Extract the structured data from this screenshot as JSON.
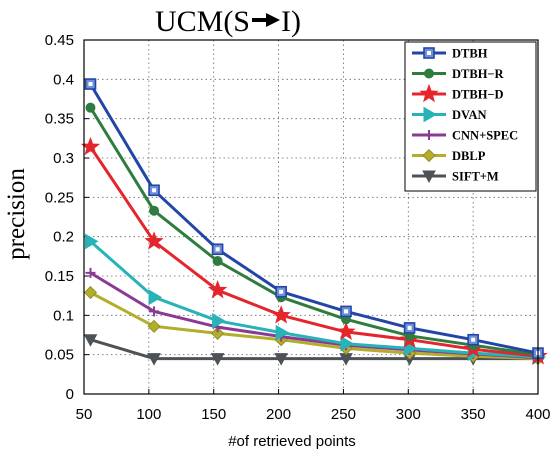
{
  "chart_data": {
    "type": "line",
    "title_left": "UCM(S",
    "title_right": "I)",
    "title_arrow_icon": "right-arrow-icon",
    "xlabel": "#of retrieved points",
    "ylabel": "precision",
    "xlim": [
      50,
      400
    ],
    "ylim": [
      0,
      0.45
    ],
    "xticks": [
      50,
      100,
      150,
      200,
      250,
      300,
      350,
      400
    ],
    "yticks": [
      "0",
      "0.05",
      "0.1",
      "0.15",
      "0.2",
      "0.25",
      "0.3",
      "0.35",
      "0.4",
      "0.45"
    ],
    "grid": true,
    "legend_position": "top-right",
    "x": [
      55,
      104,
      153,
      202,
      252,
      301,
      350,
      400
    ],
    "series": [
      {
        "name": "DTBH",
        "color": "#2346a6",
        "marker": "square-open",
        "values": [
          0.394,
          0.259,
          0.184,
          0.13,
          0.105,
          0.084,
          0.069,
          0.052
        ]
      },
      {
        "name": "DTBH−R",
        "color": "#2e7d3e",
        "marker": "circle",
        "values": [
          0.364,
          0.233,
          0.169,
          0.123,
          0.095,
          0.074,
          0.062,
          0.05
        ]
      },
      {
        "name": "DTBH−D",
        "color": "#e4262c",
        "marker": "star",
        "values": [
          0.314,
          0.194,
          0.132,
          0.1,
          0.079,
          0.069,
          0.057,
          0.048
        ]
      },
      {
        "name": "DVAN",
        "color": "#27b3b8",
        "marker": "triangle-right",
        "values": [
          0.194,
          0.123,
          0.093,
          0.078,
          0.064,
          0.058,
          0.052,
          0.047
        ]
      },
      {
        "name": "CNN+SPEC",
        "color": "#8a3a94",
        "marker": "plus",
        "values": [
          0.154,
          0.105,
          0.085,
          0.073,
          0.062,
          0.056,
          0.051,
          0.046
        ]
      },
      {
        "name": "DBLP",
        "color": "#b3ad2c",
        "marker": "diamond",
        "values": [
          0.129,
          0.086,
          0.077,
          0.069,
          0.058,
          0.052,
          0.048,
          0.045
        ]
      },
      {
        "name": "SIFT+M",
        "color": "#4d5257",
        "marker": "triangle-down",
        "values": [
          0.069,
          0.045,
          0.045,
          0.045,
          0.045,
          0.045,
          0.045,
          0.045
        ]
      }
    ]
  }
}
